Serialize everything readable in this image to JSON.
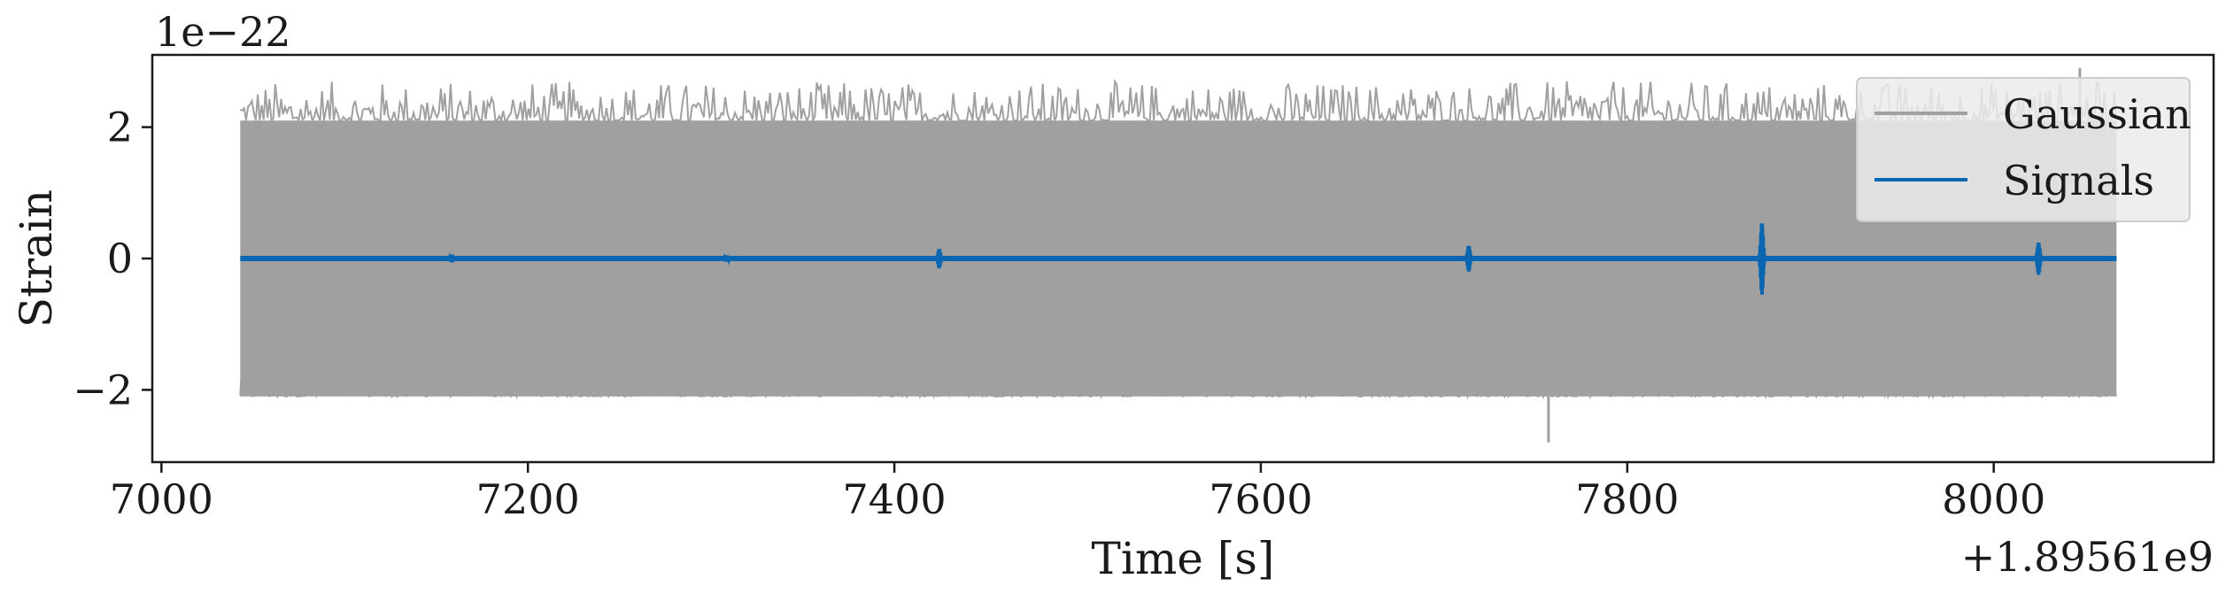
{
  "chart_data": {
    "type": "line",
    "xlabel": "Time [s]",
    "ylabel": "Strain",
    "x_offset_label": "+1.89561e9",
    "y_scale_label": "1e−22",
    "xlim": [
      6995,
      8120
    ],
    "ylim": [
      -3.1,
      3.1
    ],
    "x_ticks": [
      7000,
      7200,
      7400,
      7600,
      7800,
      8000
    ],
    "x_tick_labels": [
      "7000",
      "7200",
      "7400",
      "7600",
      "7800",
      "8000"
    ],
    "y_ticks": [
      -2,
      0,
      2
    ],
    "y_tick_labels": [
      "−2",
      "0",
      "2"
    ],
    "x_range": [
      7043,
      8067
    ],
    "grid": false,
    "legend_position": "top-right",
    "series": [
      {
        "name": "Gaussian",
        "color": "#a0a0a0",
        "band_min": -2.1,
        "band_max": 2.1,
        "peak_max": 2.9,
        "peak_min": -2.8
      },
      {
        "name": "Signals",
        "color": "#0a66b0",
        "baseline": 0.0,
        "events": [
          {
            "x": 7158,
            "amplitude": 0.06
          },
          {
            "x": 7308,
            "amplitude": 0.05
          },
          {
            "x": 7424,
            "amplitude": 0.15
          },
          {
            "x": 7713,
            "amplitude": 0.2
          },
          {
            "x": 7873,
            "amplitude": 0.55
          },
          {
            "x": 8024,
            "amplitude": 0.25
          }
        ]
      }
    ]
  }
}
